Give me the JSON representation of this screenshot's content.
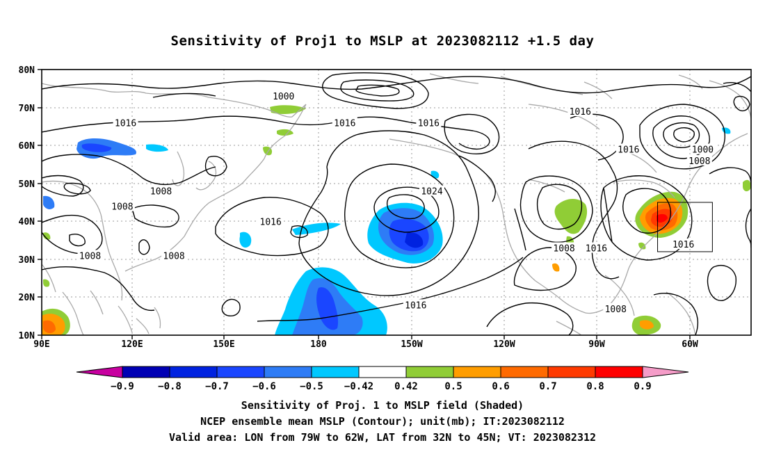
{
  "title": "Sensitivity of Proj1 to MSLP at 2023082112 +1.5 day",
  "map": {
    "lon_range": [
      90,
      310
    ],
    "lat_range": [
      10,
      80
    ],
    "lat_labels": [
      "80N",
      "70N",
      "60N",
      "50N",
      "40N",
      "30N",
      "20N",
      "10N"
    ],
    "lon_labels": [
      "90E",
      "120E",
      "150E",
      "180",
      "150W",
      "120W",
      "90W",
      "60W"
    ],
    "contour_labels": [
      {
        "text": "1000",
        "lon": 165,
        "lat": 73
      },
      {
        "text": "1016",
        "lon": 257,
        "lat": 69
      },
      {
        "text": "1016",
        "lon": 116,
        "lat": 66
      },
      {
        "text": "1016",
        "lon": 184,
        "lat": 66
      },
      {
        "text": "1016",
        "lon": 210,
        "lat": 66
      },
      {
        "text": "1000",
        "lon": 295,
        "lat": 59
      },
      {
        "text": "1016",
        "lon": 272,
        "lat": 59
      },
      {
        "text": "1008",
        "lon": 294,
        "lat": 56
      },
      {
        "text": "1008",
        "lon": 127,
        "lat": 48
      },
      {
        "text": "1024",
        "lon": 211,
        "lat": 48
      },
      {
        "text": "1008",
        "lon": 115,
        "lat": 44
      },
      {
        "text": "1016",
        "lon": 161,
        "lat": 40
      },
      {
        "text": "1016",
        "lon": 289,
        "lat": 34
      },
      {
        "text": "1008",
        "lon": 105,
        "lat": 31
      },
      {
        "text": "1008",
        "lon": 131,
        "lat": 31
      },
      {
        "text": "1008",
        "lon": 252,
        "lat": 33
      },
      {
        "text": "1016",
        "lon": 262,
        "lat": 33
      },
      {
        "text": "1016",
        "lon": 206,
        "lat": 18
      },
      {
        "text": "1008",
        "lon": 268,
        "lat": 17
      }
    ],
    "valid_box": {
      "lon_w": 281,
      "lon_e": 298,
      "lat_s": 32,
      "lat_n": 45
    }
  },
  "colorbar": {
    "labels": [
      "-0.9",
      "-0.8",
      "-0.7",
      "-0.6",
      "-0.5",
      "-0.42",
      "0.42",
      "0.5",
      "0.6",
      "0.7",
      "0.8",
      "0.9"
    ],
    "colors": [
      "#0000b4",
      "#0022e0",
      "#1a46ff",
      "#2e7cf6",
      "#00c8ff",
      "#ffffff",
      "#90cd36",
      "#ff9d00",
      "#ff6a00",
      "#ff3a00",
      "#ff0000"
    ],
    "low_extend_color": "#c800a0",
    "high_extend_color": "#f59cc8"
  },
  "captions": {
    "line1": "Sensitivity of Proj. 1 to MSLP field (Shaded)",
    "line2": "NCEP ensemble mean MSLP (Contour); unit(mb); IT:2023082112",
    "line3": "Valid area: LON from 79W to 62W, LAT from 32N to 45N; VT: 2023082312"
  }
}
